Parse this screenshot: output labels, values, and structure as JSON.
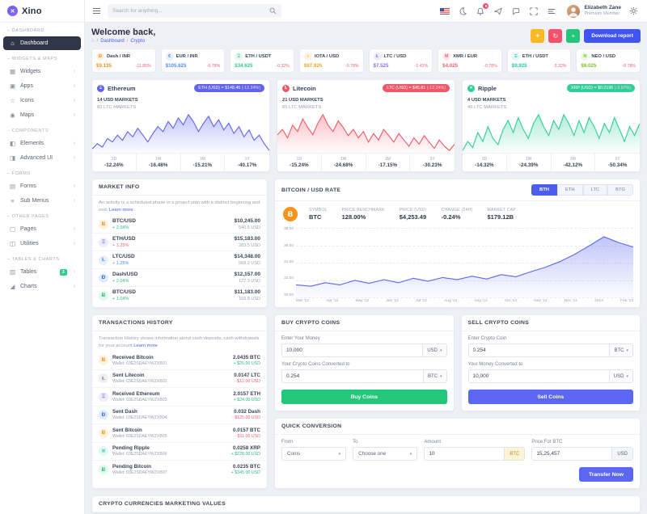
{
  "app": {
    "name": "Xino"
  },
  "header": {
    "search_placeholder": "Search for anything...",
    "notification_count": "5",
    "user_name": "Elizabeth Zane",
    "user_role": "Premium Member"
  },
  "page": {
    "welcome": "Welcome back,",
    "breadcrumb_home": "Dashboard",
    "breadcrumb_current": "Crypto",
    "breadcrumb_separator": "/",
    "download_report": "Download report",
    "actions": [
      {
        "icon": "✦",
        "color": "#ffb822",
        "name": "announcements-button"
      },
      {
        "icon": "↻",
        "color": "#f4516c",
        "name": "refresh-button"
      },
      {
        "icon": "+",
        "color": "#24c67a",
        "name": "add-button"
      }
    ]
  },
  "sidebar": {
    "sections": [
      {
        "label": "DASHBOARD",
        "items": [
          {
            "label": "Dashboard",
            "icon": "home",
            "active": true
          }
        ]
      },
      {
        "label": "WIDGETS & MAPS",
        "items": [
          {
            "label": "Widgets",
            "icon": "widgets"
          },
          {
            "label": "Apps",
            "icon": "apps"
          },
          {
            "label": "Icons",
            "icon": "icons"
          },
          {
            "label": "Maps",
            "icon": "maps"
          }
        ]
      },
      {
        "label": "COMPONENTS",
        "items": [
          {
            "label": "Elements",
            "icon": "elements"
          },
          {
            "label": "Advanced UI",
            "icon": "advanced"
          }
        ]
      },
      {
        "label": "FORMS",
        "items": [
          {
            "label": "Forms",
            "icon": "forms"
          },
          {
            "label": "Sub Menus",
            "icon": "submenus"
          }
        ]
      },
      {
        "label": "OTHER PAGES",
        "items": [
          {
            "label": "Pages",
            "icon": "pages"
          },
          {
            "label": "Utilities",
            "icon": "utilities"
          }
        ]
      },
      {
        "label": "TABLES & CHARTS",
        "items": [
          {
            "label": "Tables",
            "icon": "tables",
            "badge": "3"
          },
          {
            "label": "Charts",
            "icon": "charts"
          }
        ]
      }
    ]
  },
  "tickers": [
    {
      "pair": "Dash / INR",
      "price": "$9.135",
      "change": "-11.85%",
      "symbol": "Ð",
      "color": "#f7931a"
    },
    {
      "pair": "EUR / INR",
      "price": "$105.625",
      "change": "-0.78%",
      "symbol": "€",
      "color": "#4a8df0"
    },
    {
      "pair": "ETH / USDT",
      "price": "$34.625",
      "change": "-0.32%",
      "symbol": "Ξ",
      "color": "#2dce89"
    },
    {
      "pair": "IOTA / USD",
      "price": "$67.925",
      "change": "-0.78%",
      "symbol": "ι",
      "color": "#f5a623"
    },
    {
      "pair": "LTC / USD",
      "price": "$7.525",
      "change": "-1.42%",
      "symbol": "Ł",
      "color": "#8e6cf1"
    },
    {
      "pair": "XMR / EUR",
      "price": "$4.025",
      "change": "-0.78%",
      "symbol": "M",
      "color": "#f0616f"
    },
    {
      "pair": "ETH / USDT",
      "price": "$9.925",
      "change": "-3.32%",
      "symbol": "Ξ",
      "color": "#1fc8b0"
    },
    {
      "pair": "NEO / USD",
      "price": "$6.025",
      "change": "-0.78%",
      "symbol": "N",
      "color": "#7cc722"
    }
  ],
  "coin_cards": [
    {
      "name": "Ethereum",
      "symbol": "Ξ",
      "color": "#5f63f2",
      "badge": "ETH (USD) = $148.46",
      "badge_change": "(-12.24%)",
      "markets_primary": "14 USD MARKETS",
      "markets_secondary": "82 LTC MARKETS",
      "stats": [
        {
          "label": "1D",
          "value": "-12.24%"
        },
        {
          "label": "1W",
          "value": "-16.48%"
        },
        {
          "label": "1M",
          "value": "-15.21%"
        },
        {
          "label": "1Y",
          "value": "-40.17%"
        }
      ],
      "series": [
        42,
        45,
        43,
        48,
        46,
        50,
        47,
        52,
        49,
        54,
        50,
        46,
        51,
        55,
        52,
        58,
        54,
        60,
        56,
        62,
        58,
        52,
        57,
        61,
        55,
        59,
        53,
        57,
        51,
        55,
        49,
        53,
        47,
        50,
        45,
        41
      ]
    },
    {
      "name": "Litecoin",
      "symbol": "Ł",
      "color": "#f25767",
      "badge": "LTC (USD) = $45.81",
      "badge_change": "(-12.24%)",
      "markets_primary": "21 USD MARKETS",
      "markets_secondary": "65 LTC MARKETS",
      "stats": [
        {
          "label": "1D",
          "value": "-15.24%"
        },
        {
          "label": "1W",
          "value": "-24.68%"
        },
        {
          "label": "1M",
          "value": "-17.15%"
        },
        {
          "label": "1Y",
          "value": "-30.23%"
        }
      ],
      "series": [
        55,
        60,
        52,
        64,
        58,
        70,
        62,
        55,
        66,
        74,
        64,
        58,
        68,
        62,
        54,
        60,
        52,
        58,
        48,
        56,
        50,
        60,
        54,
        48,
        56,
        50,
        44,
        52,
        46,
        54,
        48,
        42,
        50,
        44,
        40,
        46
      ]
    },
    {
      "name": "Ripple",
      "symbol": "✕",
      "color": "#2fce98",
      "badge": "XRP (USD) = $0.2195",
      "badge_change": "(-3.97%)",
      "markets_primary": "4 USD MARKETS",
      "markets_secondary": "45 LTC MARKETS",
      "stats": [
        {
          "label": "1D",
          "value": "-14.32%"
        },
        {
          "label": "1W",
          "value": "-24.39%"
        },
        {
          "label": "1M",
          "value": "-42.12%"
        },
        {
          "label": "1Y",
          "value": "-50.34%"
        }
      ],
      "series": [
        40,
        46,
        42,
        52,
        46,
        56,
        48,
        44,
        54,
        60,
        52,
        62,
        54,
        48,
        58,
        64,
        56,
        50,
        60,
        54,
        64,
        58,
        50,
        60,
        52,
        62,
        56,
        48,
        58,
        52,
        62,
        54,
        46,
        56,
        50,
        58
      ]
    }
  ],
  "market_info": {
    "title": "MARKET INFO",
    "description": "An activity is a scheduled phase in a project plan with a distinct beginning and end.",
    "learn_more": "Learn more",
    "rows": [
      {
        "pair": "BTC/USD",
        "change": "+ 2.04%",
        "change_color": "#26c281",
        "price": "$10,245.00",
        "sub": "540.5 USD",
        "symbol": "Ƀ",
        "color": "#f7931a"
      },
      {
        "pair": "ETH/USD",
        "change": "+ 1.25%",
        "change_color": "#f0616f",
        "price": "$15,183.00",
        "sub": "283.5 USD",
        "symbol": "Ξ",
        "color": "#6b74f8"
      },
      {
        "pair": "LTC/USD",
        "change": "+ 1.25%",
        "change_color": "#4a8df0",
        "price": "$14,348.00",
        "sub": "568.2 USD",
        "symbol": "Ł",
        "color": "#4a8df0"
      },
      {
        "pair": "Dash/USD",
        "change": "+ 2.04%",
        "change_color": "#26c281",
        "price": "$12,157.00",
        "sub": "127.3 USD",
        "symbol": "Ð",
        "color": "#2e6cc9"
      },
      {
        "pair": "BTC/USD",
        "change": "+ 1.04%",
        "change_color": "#26c281",
        "price": "$11,183.00",
        "sub": "165.8 USD",
        "symbol": "Ƀ",
        "color": "#26c281"
      }
    ]
  },
  "btc_rate": {
    "title": "BITCOIN / USD RATE",
    "tabs": [
      {
        "label": "BTH",
        "active": true
      },
      {
        "label": "ETH",
        "active": false
      },
      {
        "label": "LTC",
        "active": false
      },
      {
        "label": "BTG",
        "active": false
      }
    ],
    "coin_symbol": "Ƀ",
    "stats": [
      {
        "label": "SYMBOL",
        "value": "BTC"
      },
      {
        "label": "PRICE BENCHMARK",
        "value": "128.00%"
      },
      {
        "label": "PRICE (USD)",
        "value": "$4,253.49"
      },
      {
        "label": "CHANGE (24H)",
        "value": "-0.24%"
      },
      {
        "label": "MARKET CAP",
        "value": "$179.12B"
      }
    ],
    "chart": {
      "type": "area",
      "color": "#5b67f1",
      "ylim": [
        30,
        38.5
      ],
      "y_ticks": [
        "38.00",
        "36.00",
        "34.00",
        "32.00",
        "30.00"
      ],
      "x_labels": [
        "Mar '12",
        "Apr '12",
        "May '12",
        "Jun '12",
        "Jul '12",
        "Aug '12",
        "Sep '12",
        "Oct '12",
        "Nov '12",
        "Dec '12",
        "2013",
        "Feb '13"
      ],
      "values": [
        31.2,
        31.0,
        31.5,
        31.2,
        31.8,
        31.4,
        31.9,
        31.5,
        32.1,
        31.7,
        32.2,
        31.9,
        32.4,
        32.0,
        32.6,
        32.3,
        33.0,
        33.6,
        34.4,
        35.4,
        36.6,
        37.8,
        37.0,
        36.4
      ]
    }
  },
  "transactions": {
    "title": "TRANSACTIONS HISTORY",
    "description": "Transaction History shows information about cash deposits, cash withdrawals for your account",
    "learn_more": "Learn more",
    "rows": [
      {
        "name": "Received Bitcoin",
        "wallet": "Wallet: 03E2SDAEYWZXB01",
        "amount": "2.0435 BTC",
        "sub": "+ $25.00 USD",
        "sub_color": "#26c281",
        "symbol": "Ƀ",
        "color": "#f7931a"
      },
      {
        "name": "Sent Litecoin",
        "wallet": "Wallet: 03E2SDAEYWZXB02",
        "amount": "0.0147 LTC",
        "sub": "- $12.00 USD",
        "sub_color": "#f0616f",
        "symbol": "Ł",
        "color": "#7a8aa0"
      },
      {
        "name": "Received Ethereum",
        "wallet": "Wallet: 03E2SDAEYWZXB03",
        "amount": "2.0157 ETH",
        "sub": "+ $24.00 USD",
        "sub_color": "#26c281",
        "symbol": "Ξ",
        "color": "#6b74f8"
      },
      {
        "name": "Sent Dash",
        "wallet": "Wallet: 03E2SDAEYWZXB04",
        "amount": "0.032 Dash",
        "sub": "- $125.00 USD",
        "sub_color": "#f0616f",
        "symbol": "Ð",
        "color": "#2e6cc9"
      },
      {
        "name": "Sent Bitcoin",
        "wallet": "Wallet: 03E2SDAEYWZXB05",
        "amount": "0.0157 BTC",
        "sub": "- $11.00 USD",
        "sub_color": "#f0616f",
        "symbol": "Ƀ",
        "color": "#f7931a"
      },
      {
        "name": "Pending Ripple",
        "wallet": "Wallet: 03E2SDAEYWZXB06",
        "amount": "0.0258 XRP",
        "sub": "+ $228.00 USD",
        "sub_color": "#26c281",
        "symbol": "✕",
        "color": "#1fc8b0"
      },
      {
        "name": "Pending Bitcoin",
        "wallet": "Wallet: 03E2SDAEYWZXB07",
        "amount": "0.0235 BTC",
        "sub": "+ $345.00 USD",
        "sub_color": "#26c281",
        "symbol": "Ƀ",
        "color": "#26c281"
      }
    ]
  },
  "buy_card": {
    "title": "BUY CRYPTO COINS",
    "label1": "Enter Your Money",
    "value1": "10,000",
    "currency1": "USD",
    "label2": "Your Crypto Coins Converted to",
    "value2": "0.254",
    "currency2": "BTC",
    "button": "Buy Coins"
  },
  "sell_card": {
    "title": "SELL CRYPTO COINS",
    "label1": "Enter Crypto Coin",
    "value1": "0.254",
    "currency1": "BTC",
    "label2": "Your Money Converted to",
    "value2": "10,000",
    "currency2": "USD",
    "button": "Sell Coins"
  },
  "quick_conversion": {
    "title": "QUICK CONVERSION",
    "from_label": "From",
    "from_value": "Coins",
    "to_label": "To",
    "to_value": "Choose one",
    "amount_label": "Amount",
    "amount_value": "10",
    "amount_addon": "BTC",
    "price_label": "Price For BTC",
    "price_value": "15,25,457",
    "price_addon": "USD",
    "button": "Transfer Now"
  },
  "bottom_card": {
    "title": "CRYPTO CURRENCIES MARKETING VALUES"
  }
}
